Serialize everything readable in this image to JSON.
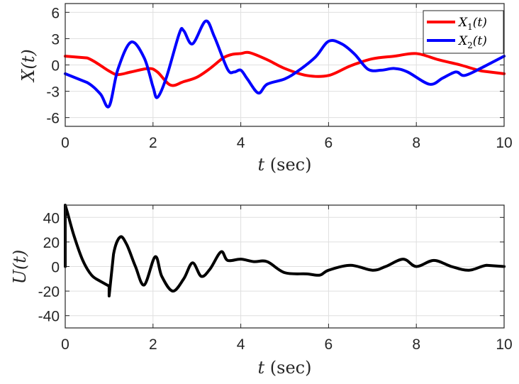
{
  "chart_data": [
    {
      "type": "line",
      "xlabel": "t (sec)",
      "xlabel_var": "t",
      "xlabel_unit": "(sec)",
      "ylabel": "X(t)",
      "xlim": [
        0,
        10
      ],
      "ylim": [
        -7,
        7
      ],
      "xticks": [
        "0",
        "2",
        "4",
        "6",
        "8",
        "10"
      ],
      "yticks": [
        "6",
        "3",
        "0",
        "-3",
        "-6"
      ],
      "ytick_values": [
        6,
        3,
        0,
        -3,
        -6
      ],
      "xtick_values": [
        0,
        2,
        4,
        6,
        8,
        10
      ],
      "grid": true,
      "legend_placement": "top-right",
      "series": [
        {
          "name": "X1(t)",
          "legend_base": "X",
          "legend_sub": "1",
          "legend_tail": "(t)",
          "color": "#ff0000",
          "x": [
            0,
            0.5,
            1.0,
            1.2,
            1.5,
            1.9,
            2.1,
            2.4,
            2.7,
            3.0,
            3.3,
            3.6,
            3.8,
            4.0,
            4.2,
            4.6,
            5.0,
            5.5,
            6.0,
            6.5,
            7.0,
            7.5,
            8.0,
            8.5,
            9.0,
            9.5,
            10
          ],
          "y": [
            1.0,
            0.8,
            -0.7,
            -1.1,
            -0.8,
            -0.4,
            -0.8,
            -2.3,
            -1.9,
            -1.4,
            -0.4,
            0.8,
            1.2,
            1.3,
            1.4,
            0.6,
            -0.4,
            -1.2,
            -1.2,
            -0.1,
            0.7,
            1.0,
            1.3,
            0.6,
            0.0,
            -0.7,
            -1.0
          ]
        },
        {
          "name": "X2(t)",
          "legend_base": "X",
          "legend_sub": "2",
          "legend_tail": "(t)",
          "color": "#0000ff",
          "x": [
            0,
            0.5,
            0.8,
            1.0,
            1.2,
            1.5,
            1.8,
            2.0,
            2.1,
            2.3,
            2.6,
            2.7,
            2.9,
            3.2,
            3.4,
            3.7,
            3.85,
            4.0,
            4.15,
            4.4,
            4.6,
            5.0,
            5.3,
            5.7,
            6.0,
            6.3,
            6.6,
            6.9,
            7.2,
            7.5,
            7.8,
            8.3,
            8.6,
            8.9,
            9.1,
            9.5,
            10
          ],
          "y": [
            -1.0,
            -2.0,
            -3.3,
            -4.7,
            -0.5,
            2.6,
            0.8,
            -2.5,
            -3.7,
            -1.5,
            3.6,
            3.9,
            2.4,
            5.0,
            3.2,
            -0.5,
            -0.8,
            -0.6,
            -1.6,
            -3.2,
            -2.2,
            -1.6,
            -0.7,
            0.9,
            2.7,
            2.4,
            1.2,
            -0.5,
            -0.6,
            -0.4,
            -0.8,
            -2.2,
            -1.5,
            -0.8,
            -1.2,
            -0.3,
            1.0
          ]
        }
      ]
    },
    {
      "type": "line",
      "xlabel": "t (sec)",
      "xlabel_var": "t",
      "xlabel_unit": "(sec)",
      "ylabel": "U(t)",
      "xlim": [
        0,
        10
      ],
      "ylim": [
        -50,
        50
      ],
      "xticks": [
        "0",
        "2",
        "4",
        "6",
        "8",
        "10"
      ],
      "yticks": [
        "40",
        "20",
        "0",
        "-20",
        "-40"
      ],
      "ytick_values": [
        40,
        20,
        0,
        -20,
        -40
      ],
      "xtick_values": [
        0,
        2,
        4,
        6,
        8,
        10
      ],
      "grid": true,
      "series": [
        {
          "name": "U(t)",
          "color": "#000000",
          "x": [
            0,
            0,
            0.05,
            0.2,
            0.4,
            0.6,
            0.8,
            1.0,
            1.0,
            1.1,
            1.25,
            1.4,
            1.6,
            1.8,
            2.05,
            2.2,
            2.45,
            2.7,
            2.9,
            3.1,
            3.3,
            3.55,
            3.7,
            4.0,
            4.3,
            4.6,
            5.0,
            5.5,
            5.8,
            6.0,
            6.5,
            7.0,
            7.3,
            7.7,
            8.0,
            8.4,
            8.8,
            9.2,
            9.6,
            10
          ],
          "y": [
            0,
            50,
            44,
            25,
            5,
            -7,
            -12,
            -16,
            -24,
            10,
            24,
            18,
            0,
            -15,
            8,
            -8,
            -20,
            -10,
            3,
            -8,
            -2,
            12,
            5,
            6,
            4,
            4,
            -5,
            -6,
            -7,
            -3,
            1,
            -3,
            0,
            6,
            0,
            5,
            0,
            -3,
            1,
            0
          ]
        }
      ]
    }
  ]
}
